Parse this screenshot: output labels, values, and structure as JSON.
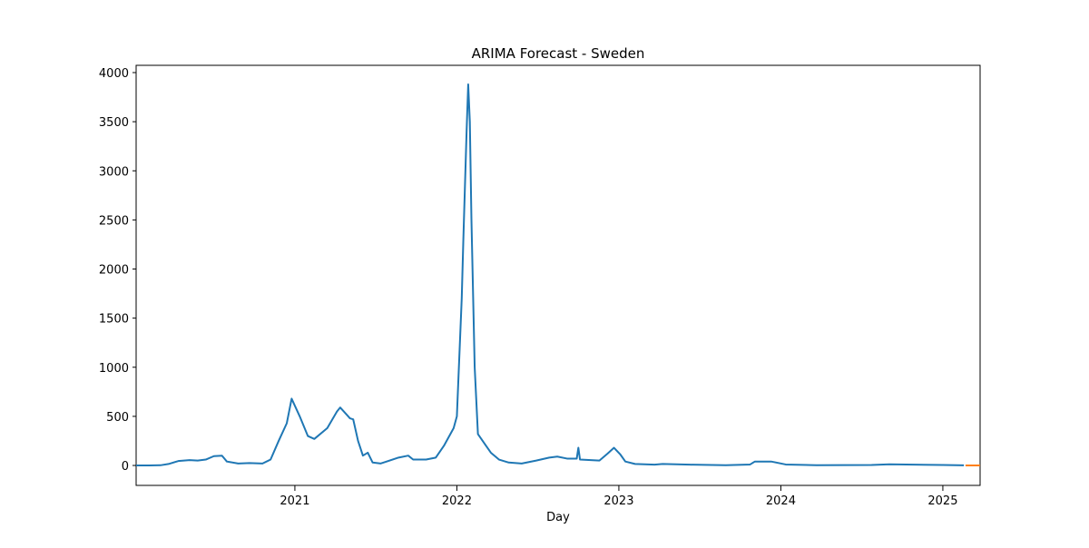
{
  "chart_data": {
    "type": "line",
    "title": "ARIMA Forecast - Sweden",
    "x_label": "Day",
    "xlim": [
      2020.02,
      2025.23
    ],
    "xticks": [
      2021,
      2022,
      2023,
      2024,
      2025
    ],
    "ylim": [
      -203,
      4074
    ],
    "yticks": [
      0,
      500,
      1000,
      1500,
      2000,
      2500,
      3000,
      3500,
      4000
    ],
    "series": [
      {
        "color": "#1f77b4",
        "x": [
          2020.02,
          2020.1,
          2020.17,
          2020.22,
          2020.28,
          2020.35,
          2020.4,
          2020.45,
          2020.5,
          2020.55,
          2020.58,
          2020.65,
          2020.72,
          2020.8,
          2020.85,
          2020.9,
          2020.95,
          2020.98,
          2021.03,
          2021.08,
          2021.12,
          2021.2,
          2021.26,
          2021.28,
          2021.34,
          2021.36,
          2021.39,
          2021.42,
          2021.45,
          2021.48,
          2021.53,
          2021.64,
          2021.7,
          2021.73,
          2021.81,
          2021.87,
          2021.92,
          2021.98,
          2022.0,
          2022.01,
          2022.03,
          2022.04,
          2022.06,
          2022.07,
          2022.08,
          2022.09,
          2022.11,
          2022.13,
          2022.18,
          2022.21,
          2022.26,
          2022.32,
          2022.4,
          2022.49,
          2022.57,
          2022.62,
          2022.68,
          2022.74,
          2022.75,
          2022.76,
          2022.88,
          2022.93,
          2022.97,
          2023.01,
          2023.04,
          2023.1,
          2023.22,
          2023.27,
          2023.44,
          2023.66,
          2023.81,
          2023.84,
          2023.94,
          2024.03,
          2024.22,
          2024.56,
          2024.67,
          2025.0,
          2025.13
        ],
        "values": [
          0,
          0,
          2,
          15,
          45,
          55,
          50,
          60,
          95,
          100,
          40,
          20,
          25,
          20,
          60,
          250,
          430,
          680,
          500,
          300,
          270,
          380,
          550,
          590,
          480,
          470,
          250,
          100,
          130,
          30,
          20,
          80,
          100,
          60,
          60,
          80,
          200,
          380,
          500,
          900,
          1700,
          2300,
          3400,
          3880,
          3500,
          2500,
          1000,
          320,
          200,
          130,
          60,
          30,
          20,
          50,
          80,
          90,
          70,
          70,
          180,
          60,
          50,
          120,
          180,
          110,
          40,
          15,
          8,
          15,
          8,
          3,
          10,
          40,
          40,
          10,
          2,
          5,
          12,
          5,
          1
        ]
      },
      {
        "color": "#ff7f0e",
        "x": [
          2025.14,
          2025.23
        ],
        "values": [
          0,
          0
        ]
      }
    ]
  }
}
